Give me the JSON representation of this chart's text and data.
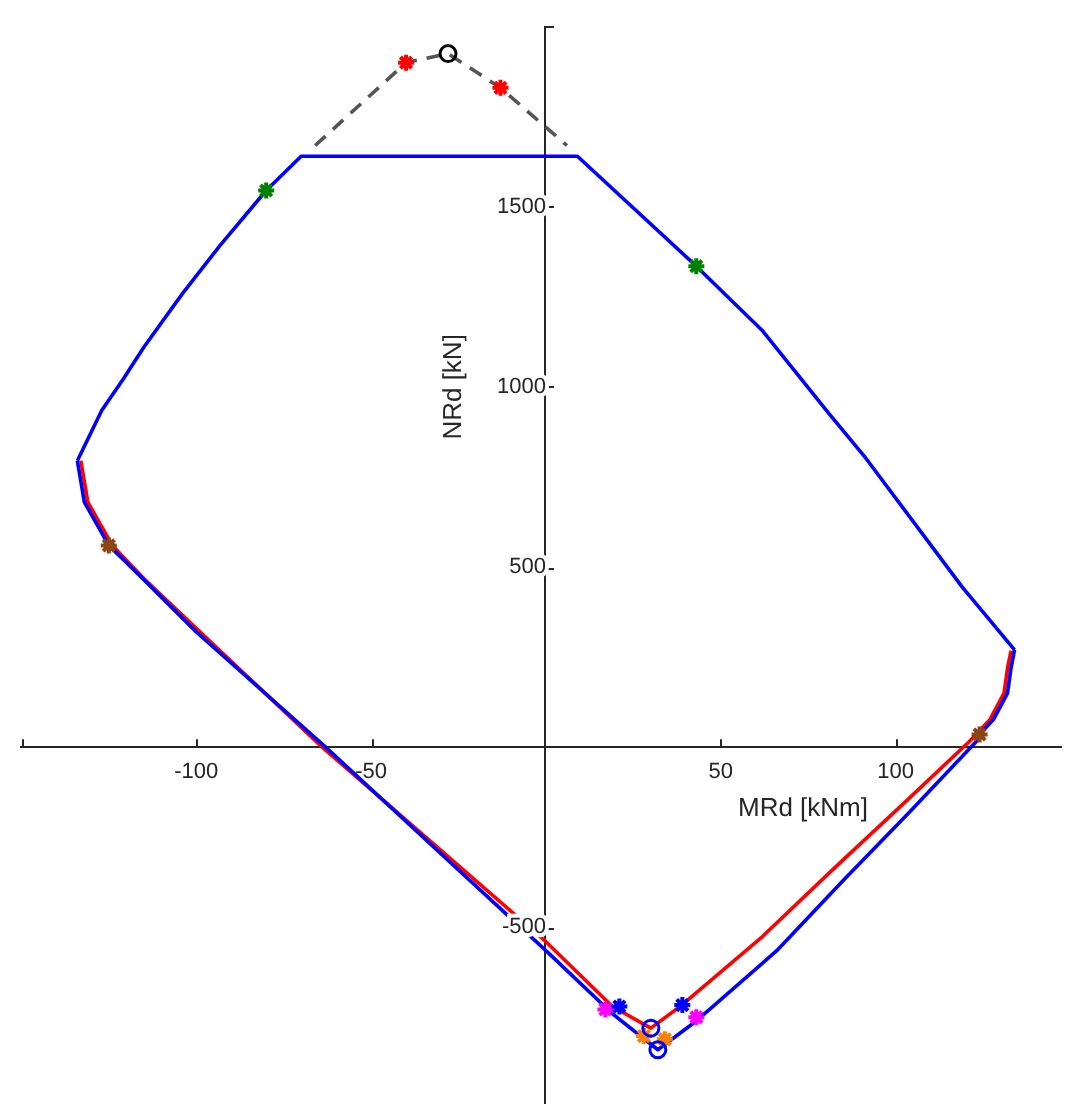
{
  "chart_data": {
    "type": "line",
    "xlabel": "MRd [kNm]",
    "ylabel": "NRd [kN]",
    "xlim": [
      -150,
      147
    ],
    "ylim": [
      -985,
      2000
    ],
    "xticks": [
      {
        "value": -150,
        "label": null
      },
      -100,
      -50,
      50,
      100
    ],
    "yticks": [
      -500,
      500,
      1000,
      1500,
      {
        "value": 2000,
        "label": null
      }
    ],
    "grid": false,
    "legend": false,
    "marker": "none",
    "line_style": "solid",
    "series": [
      {
        "color": "#ff0000",
        "x": [
          -133,
          -131,
          -124,
          -115,
          -100,
          -64,
          0,
          19,
          30,
          39,
          62,
          82,
          103,
          121,
          123,
          127,
          131,
          132,
          133
        ],
        "values": [
          795,
          680,
          560,
          468,
          330,
          0,
          -540,
          -720,
          -780,
          -715,
          -525,
          -340,
          -150,
          15,
          35,
          77,
          150,
          220,
          268
        ]
      },
      {
        "color": "#0000ff",
        "x": [
          -134,
          -127,
          -121,
          -115,
          -104,
          -93,
          -80,
          -70,
          9,
          43,
          62,
          81,
          91,
          119,
          134
        ],
        "values": [
          795,
          935,
          1020,
          1110,
          1258,
          1395,
          1545,
          1640,
          1640,
          1335,
          1155,
          925,
          808,
          445,
          270
        ]
      },
      {
        "color": "#0000ff",
        "x": [
          -134,
          -132,
          -125,
          -115,
          -100,
          -63,
          0,
          19,
          32,
          43,
          66,
          85,
          104,
          123,
          124,
          128,
          132,
          133,
          134
        ],
        "values": [
          795,
          680,
          560,
          465,
          320,
          0,
          -565,
          -740,
          -840,
          -760,
          -565,
          -370,
          -180,
          15,
          35,
          77,
          150,
          220,
          270
        ]
      },
      {
        "color": "#555555",
        "line_style": "dashed",
        "x": [
          -66,
          -40,
          -28,
          -13,
          6
        ],
        "values": [
          1670,
          1900,
          1925,
          1830,
          1670
        ]
      },
      {
        "type": "scatter",
        "color": "#ff0000",
        "marker": "cross",
        "x": [
          -40,
          -13
        ],
        "values": [
          1900,
          1830
        ]
      },
      {
        "type": "scatter",
        "color": "#000000",
        "marker": "circle",
        "x": [
          -28
        ],
        "values": [
          1925
        ]
      },
      {
        "type": "scatter",
        "color": "#008000",
        "marker": "cross",
        "x": [
          -80,
          43
        ],
        "values": [
          1545,
          1335
        ]
      },
      {
        "type": "scatter",
        "color": "#8b4513",
        "marker": "cross",
        "x": [
          -125,
          124
        ],
        "values": [
          560,
          35
        ]
      },
      {
        "type": "scatter",
        "color": "#ff00ff",
        "marker": "cross",
        "x": [
          17,
          43
        ],
        "values": [
          -728,
          -750
        ]
      },
      {
        "type": "scatter",
        "color": "#0000ff",
        "marker": "cross",
        "x": [
          21,
          39
        ],
        "values": [
          -720,
          -716
        ]
      },
      {
        "type": "scatter",
        "color": "#ff8000",
        "marker": "cross",
        "x": [
          28,
          34
        ],
        "values": [
          -802,
          -811
        ]
      },
      {
        "type": "scatter",
        "color": "#0000ff",
        "marker": "circle",
        "x": [
          30,
          32
        ],
        "values": [
          -780,
          -840
        ]
      }
    ]
  }
}
